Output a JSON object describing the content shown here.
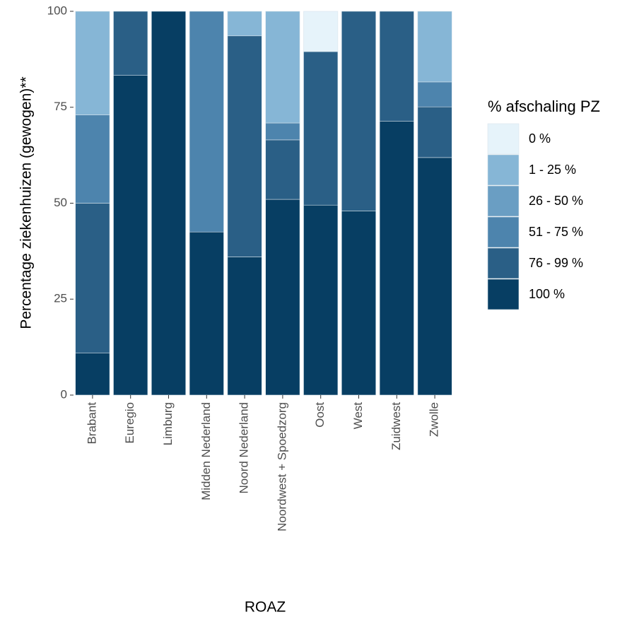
{
  "chart_data": {
    "type": "stacked_bar",
    "x_label": "ROAZ",
    "y_label": "Percentage ziekenhuizen (gewogen)**",
    "legend_title": "% afschaling PZ",
    "legend_position": "right",
    "categories": [
      "Brabant",
      "Euregio",
      "Limburg",
      "Midden Nederland",
      "Noord Nederland",
      "Noordwest + Spoedzorg",
      "Oost",
      "West",
      "Zuidwest",
      "Zwolle"
    ],
    "series": [
      {
        "name": "0 %",
        "color": "#e6f3fa",
        "values": [
          0,
          0,
          0,
          0,
          0,
          0,
          10.5,
          0,
          0,
          0
        ]
      },
      {
        "name": "1 - 25 %",
        "color": "#86b6d6",
        "values": [
          27,
          0,
          0,
          0,
          6.4,
          29.1,
          0,
          0,
          0,
          18.4
        ]
      },
      {
        "name": "26 - 50 %",
        "color": "#6a9ec3",
        "values": [
          0,
          0,
          0,
          0,
          0,
          0,
          0,
          0,
          0,
          0
        ]
      },
      {
        "name": "51 - 75 %",
        "color": "#4d84ad",
        "values": [
          23,
          0,
          0,
          57.5,
          0,
          4.4,
          0,
          0,
          0,
          6.5
        ]
      },
      {
        "name": "76 - 99 %",
        "color": "#2a5f86",
        "values": [
          39,
          16.7,
          0,
          0,
          57.6,
          15.5,
          40,
          52,
          28.6,
          13.2
        ]
      },
      {
        "name": "100 %",
        "color": "#073e63",
        "values": [
          11,
          83.3,
          100,
          42.5,
          36,
          51,
          49.5,
          48,
          71.4,
          61.9
        ]
      }
    ],
    "ylim": [
      0,
      100
    ],
    "yticks": [
      0,
      25,
      50,
      75,
      100
    ]
  }
}
